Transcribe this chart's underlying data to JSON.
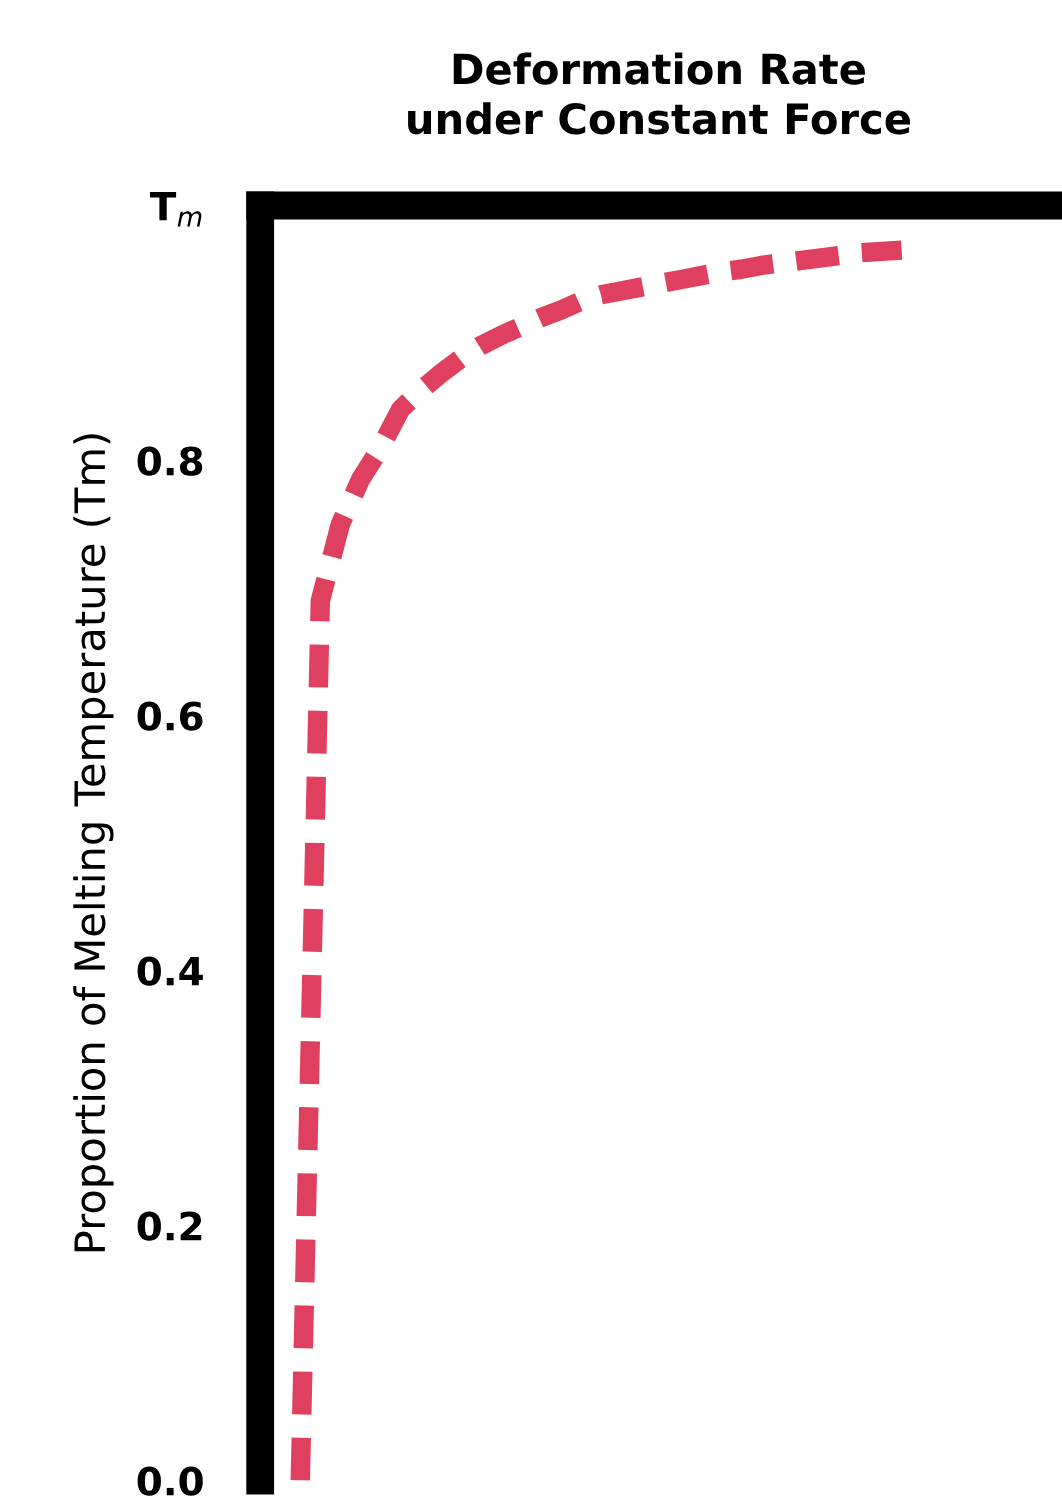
{
  "chart_data": {
    "type": "line",
    "title": "Deformation Rate\nunder Constant Force",
    "ylabel": "Proportion of Melting Temperature (Tm)",
    "ylim": [
      0,
      1.0
    ],
    "yticks": [
      {
        "value": 0,
        "label": "0.0"
      },
      0.2,
      0.4,
      0.6,
      0.8,
      {
        "value": 1.0,
        "label": "T$_{m}$"
      }
    ],
    "tick_labels": "y",
    "line_style": "dashed",
    "categories": [
      null,
      null,
      null,
      null,
      null,
      null,
      null,
      null,
      null,
      null,
      null,
      null,
      null,
      null,
      null,
      null,
      null,
      null,
      null,
      null,
      null,
      null,
      null,
      null,
      null,
      null,
      null,
      null,
      null,
      null,
      null
    ],
    "series": [
      {
        "color": "#e0405f",
        "values": [
          0.0,
          0.69,
          0.75,
          0.785,
          0.81,
          0.84,
          0.855,
          0.868,
          0.88,
          0.89,
          0.898,
          0.905,
          0.912,
          0.918,
          0.925,
          0.93,
          0.933,
          0.936,
          0.939,
          0.942,
          0.945,
          0.948,
          0.95,
          0.953,
          0.955,
          0.957,
          0.959,
          0.961,
          0.963,
          0.964,
          0.965
        ]
      }
    ]
  }
}
